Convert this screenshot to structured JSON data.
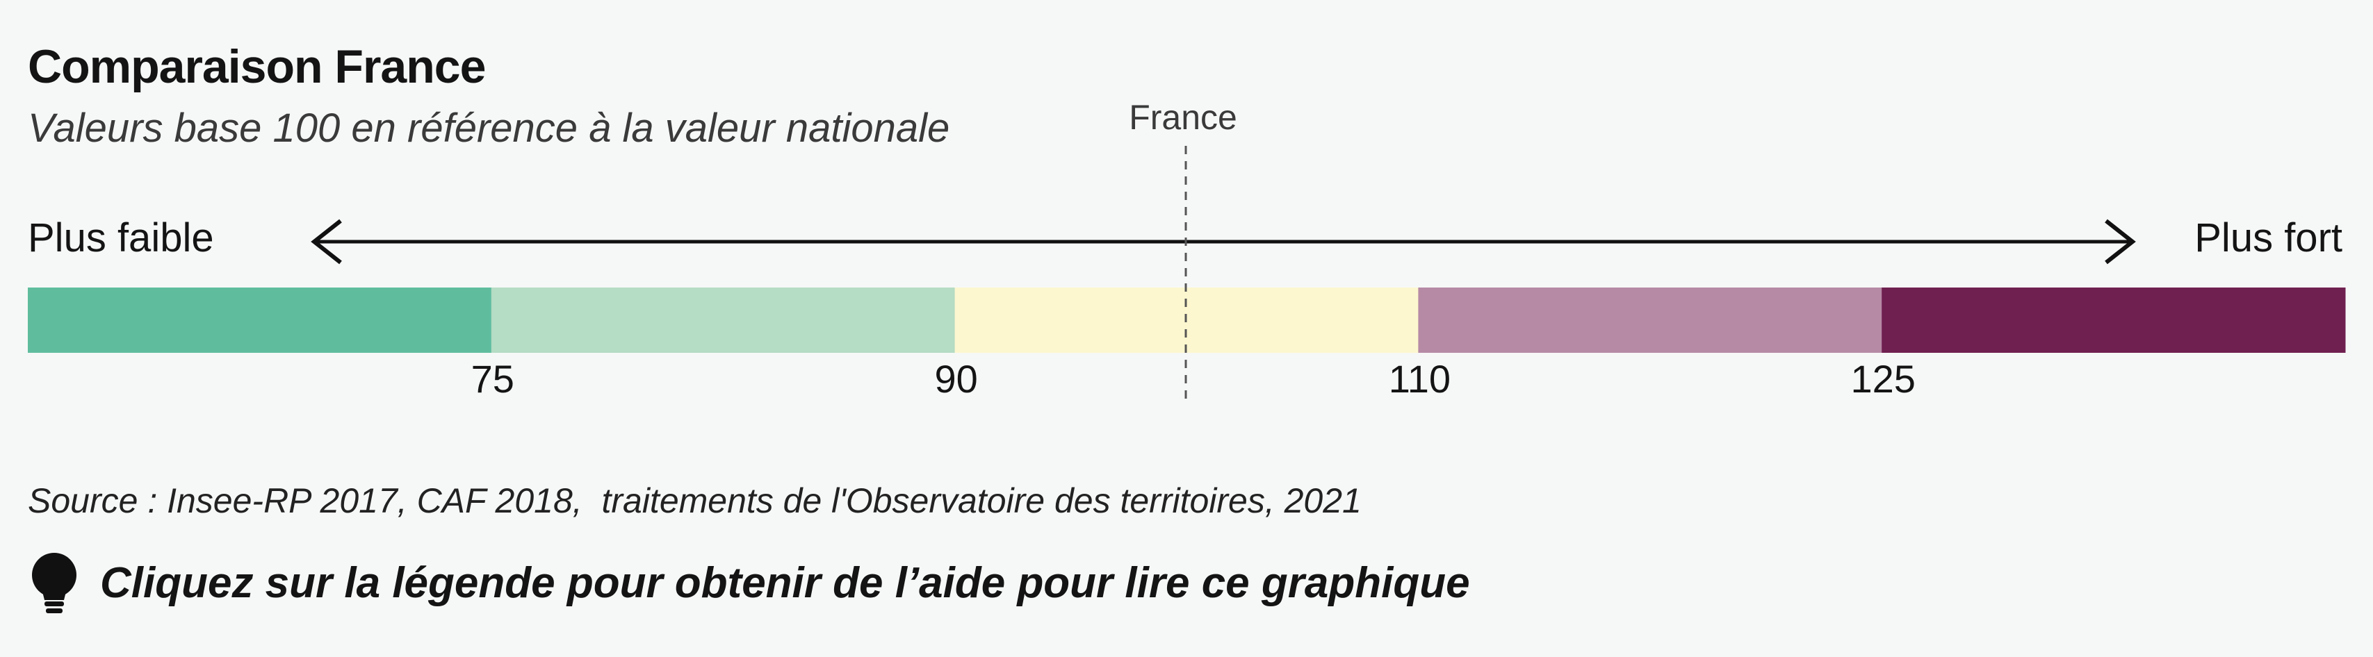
{
  "header": {
    "title": "Comparaison France",
    "subtitle": "Valeurs base 100 en référence à la valeur nationale"
  },
  "scale": {
    "left_label": "Plus faible",
    "right_label": "Plus fort"
  },
  "chart_data": {
    "type": "legend-scale",
    "reference": {
      "label": "France",
      "value": 100
    },
    "thresholds": [
      "75",
      "90",
      "110",
      "125"
    ],
    "classes": [
      {
        "range": "< 75",
        "color": "#5fbd9e"
      },
      {
        "range": "75 – 90",
        "color": "#b5dcc4"
      },
      {
        "range": "90 – 110",
        "color": "#fdf7cf"
      },
      {
        "range": "110 – 125",
        "color": "#b68aa5"
      },
      {
        "range": "> 125",
        "color": "#6f2050"
      }
    ]
  },
  "source": "Source : Insee-RP 2017, CAF 2018,  traitements de l'Observatoire des territoires, 2021",
  "help": {
    "text": "Cliquez sur la légende pour obtenir de l’aide pour lire ce graphique",
    "icon": "lightbulb-icon"
  }
}
